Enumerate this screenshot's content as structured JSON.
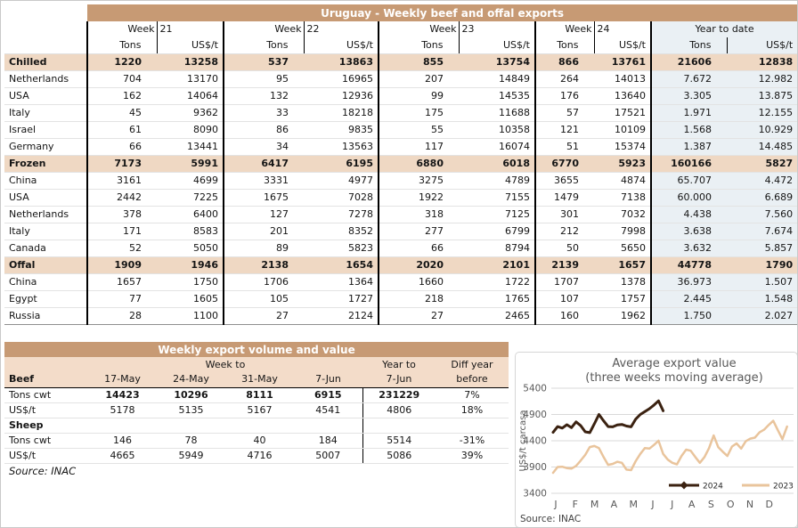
{
  "main_table": {
    "title": "Uruguay - Weekly beef and offal exports",
    "week_headers": [
      "Week 21",
      "Week 22",
      "Week 23",
      "Week 24"
    ],
    "ytd_header": "Year to date",
    "unit_headers": [
      "Tons",
      "US$/t"
    ],
    "rows": [
      {
        "label": "Chilled",
        "section": true,
        "values": [
          "1220",
          "13258",
          "537",
          "13863",
          "855",
          "13754",
          "866",
          "13761",
          "21606",
          "12838"
        ]
      },
      {
        "label": "Netherlands",
        "section": false,
        "values": [
          "704",
          "13170",
          "95",
          "16965",
          "207",
          "14849",
          "264",
          "14013",
          "7.672",
          "12.982"
        ]
      },
      {
        "label": "USA",
        "section": false,
        "values": [
          "162",
          "14064",
          "132",
          "12936",
          "99",
          "14535",
          "176",
          "13640",
          "3.305",
          "13.875"
        ]
      },
      {
        "label": "Italy",
        "section": false,
        "values": [
          "45",
          "9362",
          "33",
          "18218",
          "175",
          "11688",
          "57",
          "17521",
          "1.971",
          "12.155"
        ]
      },
      {
        "label": "Israel",
        "section": false,
        "values": [
          "61",
          "8090",
          "86",
          "9835",
          "55",
          "10358",
          "121",
          "10109",
          "1.568",
          "10.929"
        ]
      },
      {
        "label": "Germany",
        "section": false,
        "values": [
          "66",
          "13441",
          "34",
          "13563",
          "117",
          "16074",
          "51",
          "15374",
          "1.387",
          "14.485"
        ]
      },
      {
        "label": "Frozen",
        "section": true,
        "values": [
          "7173",
          "5991",
          "6417",
          "6195",
          "6880",
          "6018",
          "6770",
          "5923",
          "160166",
          "5827"
        ]
      },
      {
        "label": "China",
        "section": false,
        "values": [
          "3161",
          "4699",
          "3331",
          "4977",
          "3275",
          "4789",
          "3655",
          "4874",
          "65.707",
          "4.472"
        ]
      },
      {
        "label": "USA",
        "section": false,
        "values": [
          "2442",
          "7225",
          "1675",
          "7028",
          "1922",
          "7155",
          "1479",
          "7138",
          "60.000",
          "6.689"
        ]
      },
      {
        "label": "Netherlands",
        "section": false,
        "values": [
          "378",
          "6400",
          "127",
          "7278",
          "318",
          "7125",
          "301",
          "7032",
          "4.438",
          "7.560"
        ]
      },
      {
        "label": "Italy",
        "section": false,
        "values": [
          "171",
          "8583",
          "201",
          "8352",
          "277",
          "6799",
          "212",
          "7998",
          "3.638",
          "7.674"
        ]
      },
      {
        "label": "Canada",
        "section": false,
        "values": [
          "52",
          "5050",
          "89",
          "5823",
          "66",
          "8794",
          "50",
          "5650",
          "3.632",
          "5.857"
        ]
      },
      {
        "label": "Offal",
        "section": true,
        "values": [
          "1909",
          "1946",
          "2138",
          "1654",
          "2020",
          "2101",
          "2139",
          "1657",
          "44778",
          "1790"
        ]
      },
      {
        "label": "China",
        "section": false,
        "values": [
          "1657",
          "1750",
          "1706",
          "1364",
          "1660",
          "1722",
          "1707",
          "1378",
          "36.973",
          "1.507"
        ]
      },
      {
        "label": "Egypt",
        "section": false,
        "values": [
          "77",
          "1605",
          "105",
          "1727",
          "218",
          "1765",
          "107",
          "1757",
          "2.445",
          "1.548"
        ]
      },
      {
        "label": "Russia",
        "section": false,
        "values": [
          "28",
          "1100",
          "27",
          "2124",
          "27",
          "2465",
          "160",
          "1962",
          "1.750",
          "2.027"
        ]
      }
    ]
  },
  "weekly_table": {
    "title": "Weekly export volume and value",
    "group_week_to": "Week to",
    "group_year_to": "Year to",
    "group_diff_line1": "Diff year",
    "group_diff_line2": "before",
    "beef_label": "Beef",
    "date_headers": [
      "17-May",
      "24-May",
      "31-May",
      "7-Jun",
      "7-Jun"
    ],
    "rows": [
      {
        "label": "Tons cwt",
        "bold": true,
        "values": [
          "14423",
          "10296",
          "8111",
          "6915",
          "231229",
          "7%"
        ]
      },
      {
        "label": "US$/t",
        "bold": false,
        "values": [
          "5178",
          "5135",
          "5167",
          "4541",
          "4806",
          "18%"
        ]
      },
      {
        "label": "Sheep",
        "subheader": true,
        "values": [
          "",
          "",
          "",
          "",
          "",
          ""
        ]
      },
      {
        "label": "Tons cwt",
        "bold": false,
        "values": [
          "146",
          "78",
          "40",
          "184",
          "5514",
          "-31%"
        ]
      },
      {
        "label": "US$/t",
        "bold": false,
        "values": [
          "4665",
          "5949",
          "4716",
          "5007",
          "5086",
          "39%"
        ]
      }
    ],
    "source": "Source: INAC"
  },
  "chart_data": {
    "type": "line",
    "title": "Average export value",
    "subtitle": "(three weeks moving average)",
    "ylabel": "US$/t carcasa",
    "source": "Source: INAC",
    "ylim": [
      3400,
      5400
    ],
    "yticks": [
      3400,
      3900,
      4400,
      4900,
      5400
    ],
    "grid": true,
    "legend_position": "bottom-inside",
    "months": [
      "J",
      "F",
      "M",
      "A",
      "M",
      "J",
      "J",
      "A",
      "S",
      "O",
      "N",
      "D"
    ],
    "x_unit": "week of year",
    "series": [
      {
        "name": "2024",
        "color": "#3B2211",
        "width": 3,
        "values": [
          4560,
          4670,
          4640,
          4705,
          4650,
          4760,
          4690,
          4570,
          4555,
          4720,
          4900,
          4780,
          4670,
          4665,
          4700,
          4710,
          4680,
          4665,
          4810,
          4900,
          4955,
          5010,
          5080,
          5160,
          4970
        ]
      },
      {
        "name": "2023",
        "color": "#E9C49C",
        "width": 2.5,
        "values": [
          3790,
          3900,
          3905,
          3880,
          3870,
          3920,
          4020,
          4130,
          4280,
          4300,
          4260,
          4090,
          3940,
          3960,
          4000,
          3980,
          3850,
          3840,
          4010,
          4150,
          4260,
          4250,
          4320,
          4400,
          4150,
          4040,
          3980,
          3950,
          4110,
          4230,
          4210,
          4090,
          3980,
          4090,
          4260,
          4500,
          4280,
          4190,
          4110,
          4290,
          4350,
          4250,
          4390,
          4440,
          4460,
          4560,
          4610,
          4700,
          4780,
          4600,
          4430,
          4670
        ]
      }
    ]
  }
}
